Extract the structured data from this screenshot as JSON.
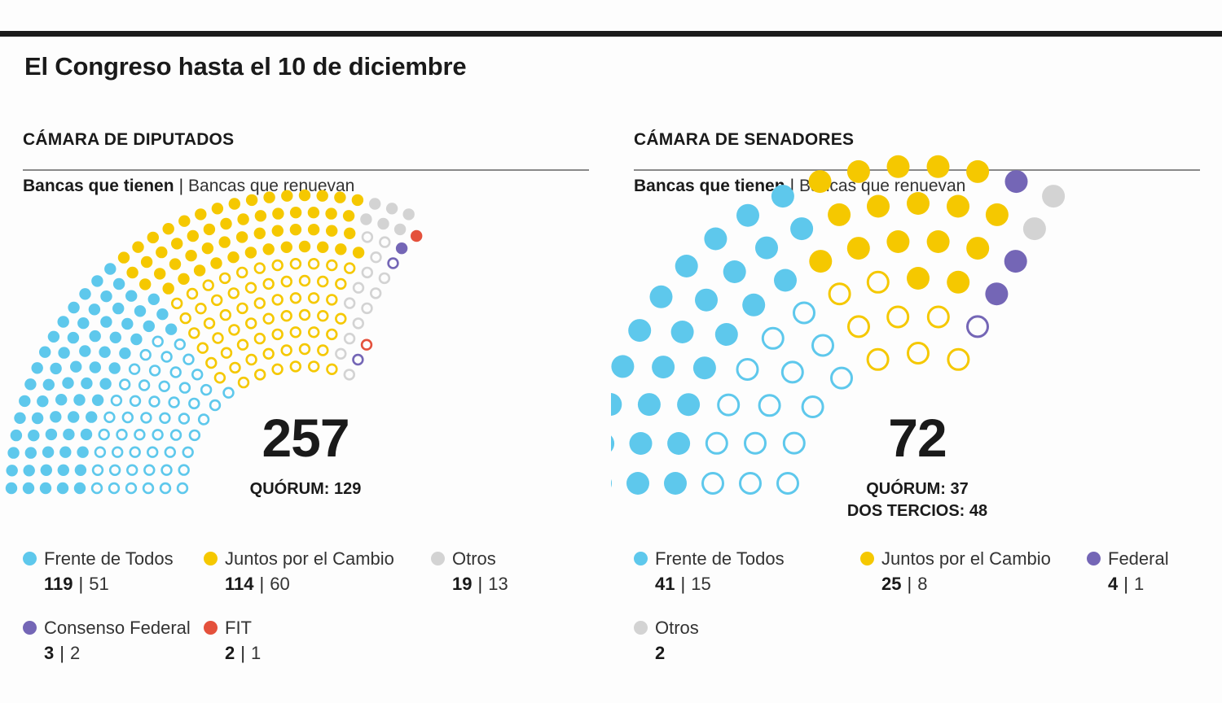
{
  "title": "El Congreso hasta el 10 de diciembre",
  "colors": {
    "frente_de_todos": "#5ec8ec",
    "juntos_por_el_cambio": "#f5c800",
    "otros": "#d3d3d3",
    "consenso_federal": "#7466b6",
    "fit": "#e4513c",
    "federal": "#7466b6"
  },
  "chart_data": [
    {
      "type": "parliament",
      "title": "CÁMARA DE DIPUTADOS",
      "subtitle_have": "Bancas que tienen",
      "subtitle_sep": "|",
      "subtitle_renew": "Bancas que renuevan",
      "total": "257",
      "quorum_label": "QUÓRUM: 129",
      "quorum_label_2": "",
      "series": [
        {
          "name": "Frente de Todos",
          "have": 119,
          "renew": 51,
          "color": "#5ec8ec"
        },
        {
          "name": "Juntos por el Cambio",
          "have": 114,
          "renew": 60,
          "color": "#f5c800"
        },
        {
          "name": "Otros",
          "have": 19,
          "renew": 13,
          "color": "#d3d3d3"
        },
        {
          "name": "Consenso Federal",
          "have": 3,
          "renew": 2,
          "color": "#7466b6"
        },
        {
          "name": "FIT",
          "have": 2,
          "renew": 1,
          "color": "#e4513c"
        }
      ]
    },
    {
      "type": "parliament",
      "title": "CÁMARA DE SENADORES",
      "subtitle_have": "Bancas que tienen",
      "subtitle_sep": "|",
      "subtitle_renew": "Bancas que renuevan",
      "total": "72",
      "quorum_label": "QUÓRUM: 37",
      "quorum_label_2": "DOS TERCIOS: 48",
      "series": [
        {
          "name": "Frente de Todos",
          "have": 41,
          "renew": 15,
          "color": "#5ec8ec"
        },
        {
          "name": "Juntos por el Cambio",
          "have": 25,
          "renew": 8,
          "color": "#f5c800"
        },
        {
          "name": "Federal",
          "have": 4,
          "renew": 1,
          "color": "#7466b6"
        },
        {
          "name": "Otros",
          "have": 2,
          "renew": null,
          "color": "#d3d3d3"
        }
      ]
    }
  ]
}
